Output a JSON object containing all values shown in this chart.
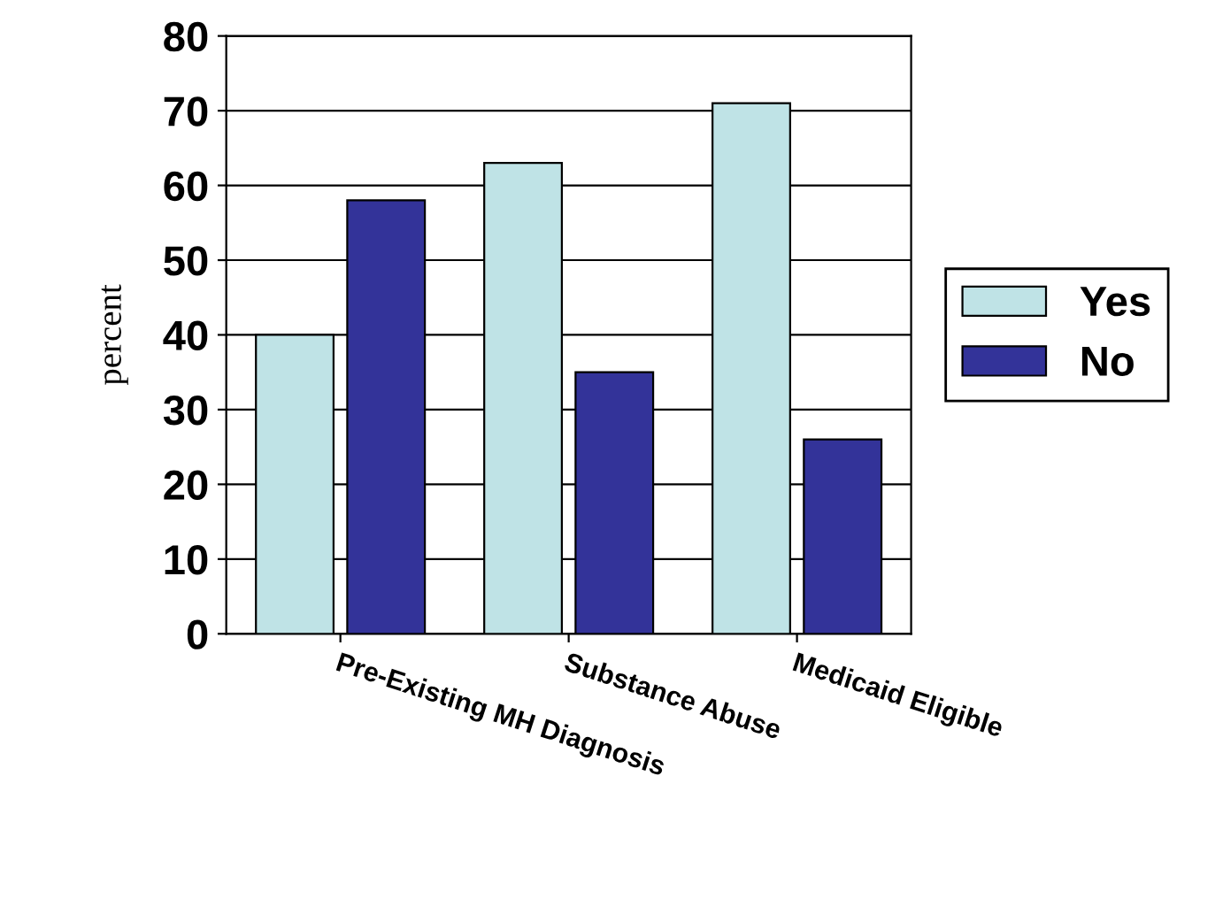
{
  "chart_data": {
    "type": "bar",
    "ylabel": "percent",
    "categories": [
      "Pre-Existing MH Diagnosis",
      "Substance Abuse",
      "Medicaid Eligible"
    ],
    "series": [
      {
        "name": "Yes",
        "color": "#bfe3e6",
        "values": [
          40,
          63,
          71
        ]
      },
      {
        "name": "No",
        "color": "#333399",
        "values": [
          58,
          35,
          26
        ]
      }
    ],
    "ylim": [
      0,
      80
    ],
    "yticks": [
      0,
      10,
      20,
      30,
      40,
      50,
      60,
      70,
      80
    ],
    "grid": "y",
    "legend": "right"
  }
}
